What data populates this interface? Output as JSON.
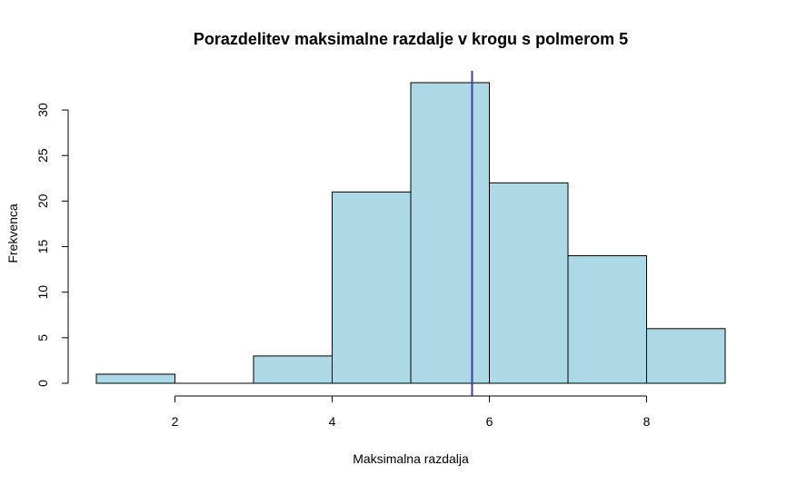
{
  "chart_data": {
    "type": "bar",
    "title": "Porazdelitev maksimalne razdalje v krogu s polmerom 5",
    "xlabel": "Maksimalna razdalja",
    "ylabel": "Frekvenca",
    "bins": [
      {
        "start": 1,
        "end": 2,
        "count": 1
      },
      {
        "start": 2,
        "end": 3,
        "count": 0
      },
      {
        "start": 3,
        "end": 4,
        "count": 3
      },
      {
        "start": 4,
        "end": 5,
        "count": 21
      },
      {
        "start": 5,
        "end": 6,
        "count": 33
      },
      {
        "start": 6,
        "end": 7,
        "count": 22
      },
      {
        "start": 7,
        "end": 8,
        "count": 14
      },
      {
        "start": 8,
        "end": 9,
        "count": 6
      }
    ],
    "xlim": [
      1,
      9
    ],
    "ylim": [
      0,
      33
    ],
    "x_ticks": [
      "2",
      "4",
      "6",
      "8"
    ],
    "y_ticks": [
      "0",
      "5",
      "10",
      "15",
      "20",
      "25",
      "30"
    ],
    "reference_line": {
      "x": 5.78
    },
    "grid": false,
    "colors": {
      "bar_fill": "#ADD8E6",
      "bar_stroke": "#000000",
      "reference_line": "#3F3FA6",
      "axis": "#000000"
    }
  }
}
